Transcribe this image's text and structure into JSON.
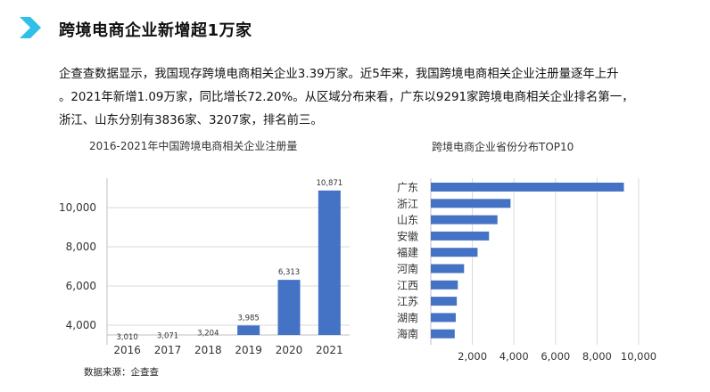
{
  "header": {
    "title": "跨境电商企业新增超1万家",
    "accent_color": "#2ec0e8"
  },
  "paragraph": {
    "line1": "企查查数据显示，我国现存跨境电商相关企业3.39万家。近5年来，我国跨境电商相关企业注册量逐年上升",
    "line2": "。2021年新增1.09万家，同比增长72.20%。从区域分布来看，广东以9291家跨境电商相关企业排名第一，",
    "line3": "浙江、山东分别有3836家、3207家，排名前三。"
  },
  "source": "数据来源：企查查",
  "chart_data": [
    {
      "type": "bar",
      "title": "2016-2021年中国跨境电商相关企业注册量",
      "categories": [
        "2016",
        "2017",
        "2018",
        "2019",
        "2020",
        "2021"
      ],
      "values": [
        3010,
        3071,
        3204,
        3985,
        6313,
        10871
      ],
      "data_labels": [
        "3,010",
        "3,071",
        "3,204",
        "3,985",
        "6,313",
        "10,871"
      ],
      "ylim": [
        3000,
        11500
      ],
      "yticks": [
        4000,
        6000,
        8000,
        10000
      ],
      "ytick_labels": [
        "4,000",
        "6,000",
        "8,000",
        "10,000"
      ],
      "grid": true,
      "color": "#4472c4"
    },
    {
      "type": "bar",
      "orientation": "horizontal",
      "title": "跨境电商企业省份分布TOP10",
      "categories": [
        "广东",
        "浙江",
        "山东",
        "安徽",
        "福建",
        "河南",
        "江西",
        "江苏",
        "湖南",
        "海南"
      ],
      "values": [
        9291,
        3836,
        3207,
        2800,
        2250,
        1600,
        1300,
        1250,
        1200,
        1150
      ],
      "xlim": [
        0,
        10000
      ],
      "xticks": [
        2000,
        4000,
        6000,
        8000,
        10000
      ],
      "xtick_labels": [
        "2,000",
        "4,000",
        "6,000",
        "8,000",
        "10,000"
      ],
      "grid": true,
      "color": "#4472c4"
    }
  ]
}
